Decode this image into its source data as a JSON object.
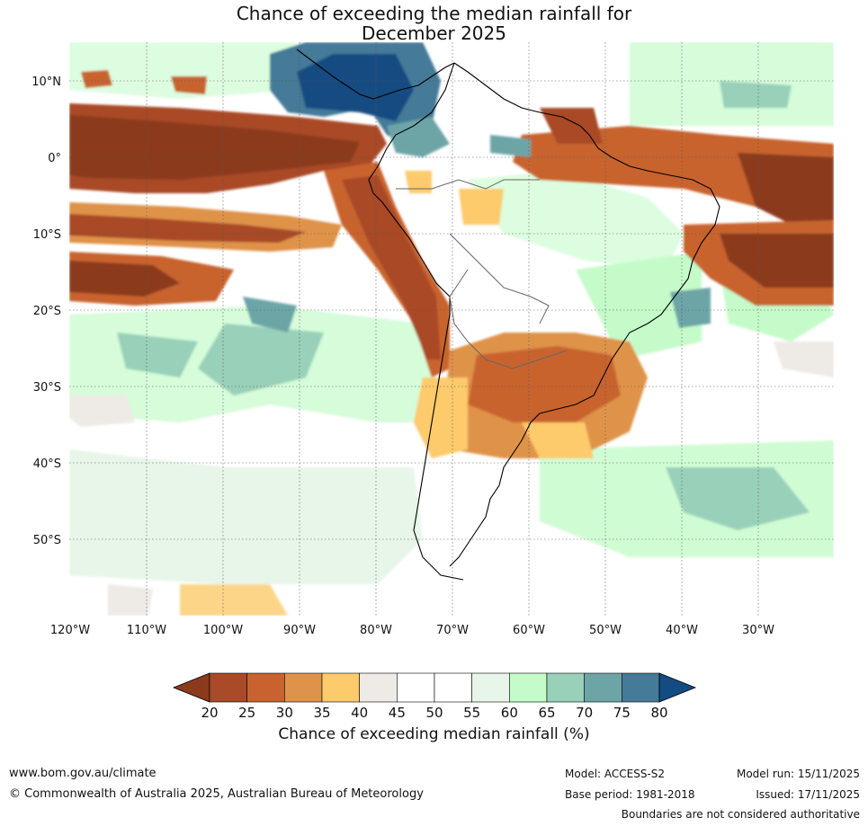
{
  "title": {
    "line1": "Chance of exceeding the median rainfall for",
    "line2": "December 2025"
  },
  "map": {
    "lat_labels": [
      "10°N",
      "0°",
      "10°S",
      "20°S",
      "30°S",
      "40°S",
      "50°S"
    ],
    "lon_labels": [
      "120°W",
      "110°W",
      "100°W",
      "90°W",
      "80°W",
      "70°W",
      "60°W",
      "50°W",
      "40°W",
      "30°W"
    ],
    "frame_color": "#000000",
    "grid_color": "#555555"
  },
  "colorbar": {
    "ticks": [
      "20",
      "25",
      "30",
      "35",
      "40",
      "45",
      "50",
      "55",
      "60",
      "65",
      "70",
      "75",
      "80"
    ],
    "colors": [
      "#8b3a1e",
      "#a94a28",
      "#c8632f",
      "#df934a",
      "#fdca6c",
      "#eeebe6",
      "#ffffff",
      "#ffffff",
      "#e8f5e9",
      "#c4fbc9",
      "#99d0b9",
      "#6da5a7",
      "#457a98",
      "#124c82"
    ],
    "title": "Chance of exceeding median rainfall (%)"
  },
  "footer": {
    "website": "www.bom.gov.au/climate",
    "copyright": "© Commonwealth of Australia 2025, Australian Bureau of Meteorology",
    "model": "Model: ACCESS-S2",
    "base_period": "Base period: 1981-2018",
    "model_run": "Model run: 15/11/2025",
    "issued": "Issued: 17/11/2025",
    "disclaimer": "Boundaries are not considered authoritative"
  }
}
